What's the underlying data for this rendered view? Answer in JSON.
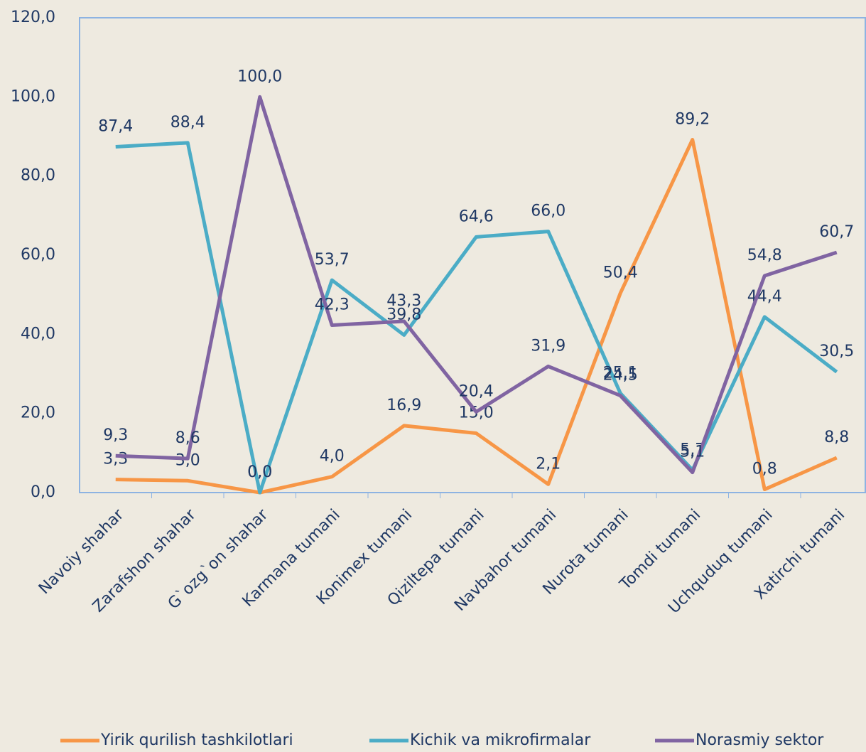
{
  "chart_data": {
    "type": "line",
    "categories": [
      "Navoiy shahar",
      "Zarafshon shahar",
      "G`ozg`on shahar",
      "Karmana tumani",
      "Konimex tumani",
      "Qiziltepa tumani",
      "Navbahor tumani",
      "Nurota tumani",
      "Tomdi tumani",
      "Uchquduq tumani",
      "Xatirchi tumani"
    ],
    "series": [
      {
        "name": "Yirik qurilish tashkilotlari",
        "color": "#f79646",
        "values": [
          3.3,
          3.0,
          0.0,
          4.0,
          16.9,
          15.0,
          2.1,
          50.4,
          89.2,
          0.8,
          8.8
        ],
        "value_labels": [
          "3,3",
          "3,0",
          "0,0",
          "4,0",
          "16,9",
          "15,0",
          "2,1",
          "50,4",
          "89,2",
          "0,8",
          "8,8"
        ]
      },
      {
        "name": "Kichik va mikrofirmalar",
        "color": "#4bacc6",
        "values": [
          87.4,
          88.4,
          0.0,
          53.7,
          39.8,
          64.6,
          66.0,
          25.1,
          5.7,
          44.4,
          30.5
        ],
        "value_labels": [
          "87,4",
          "88,4",
          "0,0",
          "53,7",
          "39,8",
          "64,6",
          "66,0",
          "25,1",
          "5,7",
          "44,4",
          "30,5"
        ]
      },
      {
        "name": "Norasmiy sektor",
        "color": "#8064a2",
        "values": [
          9.3,
          8.6,
          100.0,
          42.3,
          43.3,
          20.4,
          31.9,
          24.5,
          5.1,
          54.8,
          60.7
        ],
        "value_labels": [
          "9,3",
          "8,6",
          "100,0",
          "42,3",
          "43,3",
          "20,4",
          "31,9",
          "24,5",
          "5,1",
          "54,8",
          "60,7"
        ]
      }
    ],
    "ylim": [
      0,
      120
    ],
    "yticks": [
      {
        "value": 0,
        "label": "0,0"
      },
      {
        "value": 20,
        "label": "20,0"
      },
      {
        "value": 40,
        "label": "40,0"
      },
      {
        "value": 60,
        "label": "60,0"
      },
      {
        "value": 80,
        "label": "80,0"
      },
      {
        "value": 100,
        "label": "100,0"
      },
      {
        "value": 120,
        "label": "120,0"
      }
    ],
    "grid": false,
    "legend": "bottom"
  }
}
